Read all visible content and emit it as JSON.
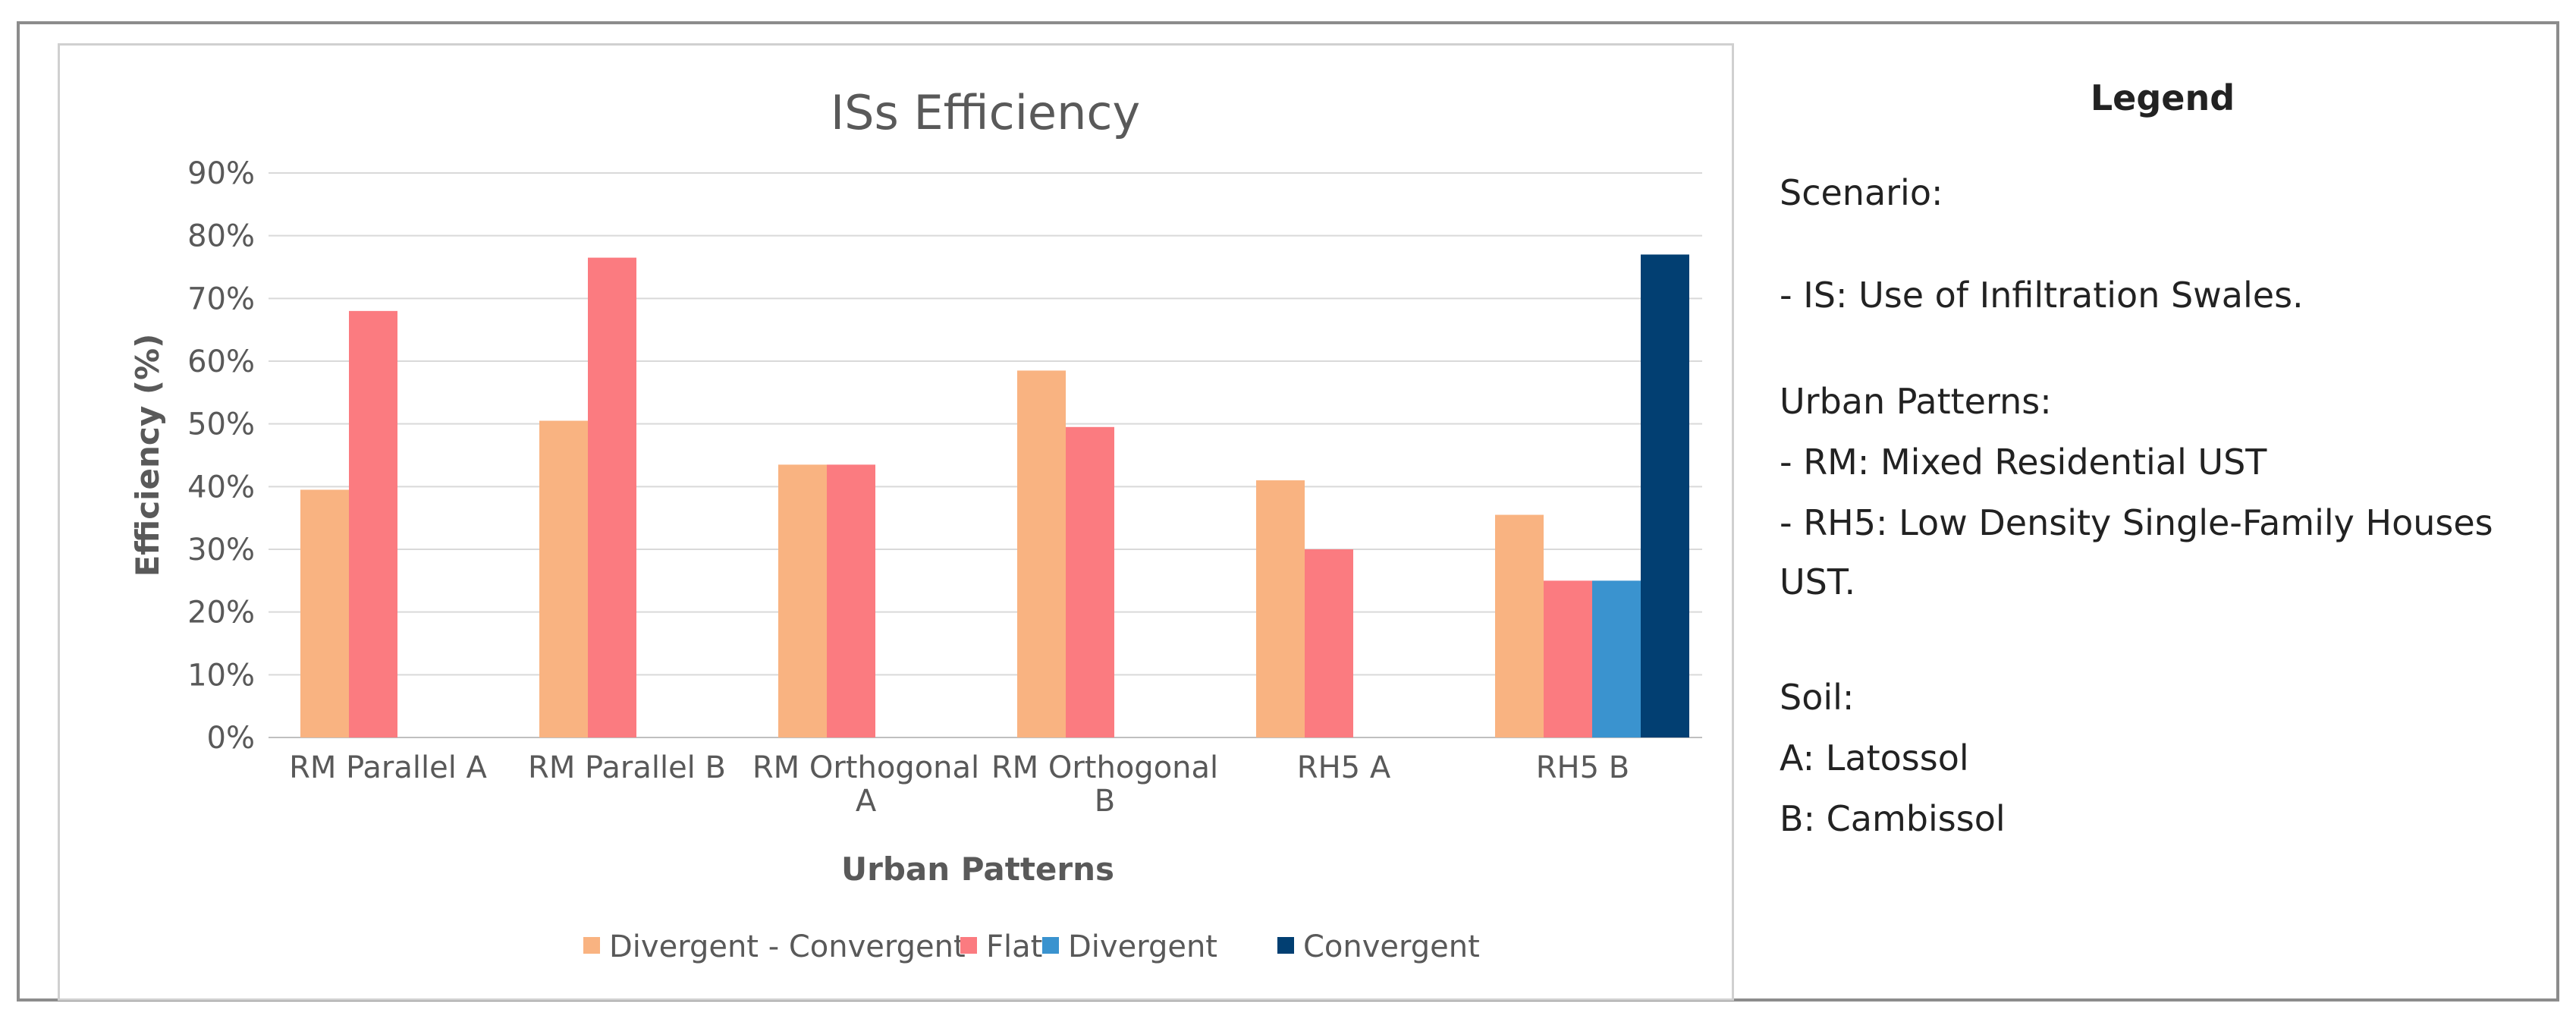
{
  "chart_data": {
    "type": "bar",
    "title": "ISs Efficiency",
    "xlabel": "Urban Patterns",
    "ylabel": "Efficiency (%)",
    "ylim": [
      0,
      90
    ],
    "yticks": [
      0,
      10,
      20,
      30,
      40,
      50,
      60,
      70,
      80,
      90
    ],
    "ytick_labels": [
      "0%",
      "10%",
      "20%",
      "30%",
      "40%",
      "50%",
      "60%",
      "70%",
      "80%",
      "90%"
    ],
    "grid": true,
    "legend_position": "bottom",
    "categories": [
      [
        "RM Parallel A"
      ],
      [
        "RM Parallel B"
      ],
      [
        "RM Orthogonal",
        "A"
      ],
      [
        "RM Orthogonal",
        "B"
      ],
      [
        "RH5 A"
      ],
      [
        "RH5 B"
      ]
    ],
    "series": [
      {
        "name": "Divergent - Convergent",
        "color": "#F9B381",
        "values": [
          39.5,
          50.5,
          43.5,
          58.5,
          41,
          35.5
        ]
      },
      {
        "name": "Flat",
        "color": "#FB7B80",
        "values": [
          68,
          76.5,
          43.5,
          49.5,
          30,
          25
        ]
      },
      {
        "name": "Divergent",
        "color": "#3A93CF",
        "values": [
          null,
          null,
          null,
          null,
          null,
          25
        ]
      },
      {
        "name": "Convergent",
        "color": "#023F72",
        "values": [
          null,
          null,
          null,
          null,
          null,
          77
        ]
      }
    ]
  },
  "legend_panel": {
    "title": "Legend",
    "lines": [
      " Scenario:",
      "- IS: Use of Infiltration Swales.",
      "Urban Patterns:",
      "- RM: Mixed Residential UST",
      "- RH5: Low Density Single-Family Houses",
      "UST.",
      "Soil:",
      "A: Latossol",
      "B: Cambissol"
    ]
  }
}
